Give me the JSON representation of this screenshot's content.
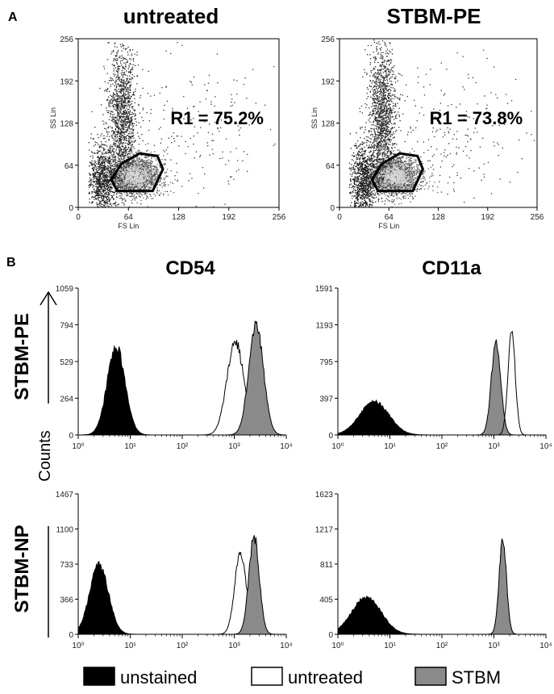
{
  "figure": {
    "panel_a_letter": "A",
    "panel_b_letter": "B",
    "counts_label": "Counts",
    "legend": [
      {
        "label": "unstained",
        "fill": "#000000"
      },
      {
        "label": "untreated",
        "fill": "#ffffff"
      },
      {
        "label": "STBM",
        "fill": "#8a8a8a"
      }
    ]
  },
  "chart_data": [
    {
      "type": "scatter",
      "title": "untreated",
      "xlabel": "FS Lin",
      "ylabel": "SS Lin",
      "xlim": [
        0,
        256
      ],
      "ylim": [
        0,
        256
      ],
      "xticks": [
        "0",
        "64",
        "128",
        "192",
        "256"
      ],
      "yticks": [
        "0",
        "64",
        "128",
        "192",
        "256"
      ],
      "gate": {
        "name": "R1",
        "label": "R1 = 75.2%",
        "percent": 75.2,
        "polygon": [
          [
            50,
            25
          ],
          [
            95,
            25
          ],
          [
            108,
            58
          ],
          [
            101,
            78
          ],
          [
            78,
            82
          ],
          [
            55,
            66
          ],
          [
            42,
            42
          ]
        ]
      }
    },
    {
      "type": "scatter",
      "title": "STBM-PE",
      "xlabel": "FS Lin",
      "ylabel": "SS Lin",
      "xlim": [
        0,
        256
      ],
      "ylim": [
        0,
        256
      ],
      "xticks": [
        "0",
        "64",
        "128",
        "192",
        "256"
      ],
      "yticks": [
        "0",
        "64",
        "128",
        "192",
        "256"
      ],
      "gate": {
        "name": "R1",
        "label": "R1 = 73.8%",
        "percent": 73.8,
        "polygon": [
          [
            50,
            25
          ],
          [
            95,
            25
          ],
          [
            108,
            58
          ],
          [
            101,
            78
          ],
          [
            78,
            82
          ],
          [
            55,
            66
          ],
          [
            42,
            42
          ]
        ]
      }
    },
    {
      "type": "area",
      "title": "CD54",
      "row": "STBM-PE",
      "xscale": "log",
      "xlim": [
        1,
        10000
      ],
      "xticks": [
        "10⁰",
        "10¹",
        "10²",
        "10³",
        "10⁴"
      ],
      "ymax": 1059,
      "yticks": [
        "0",
        "264",
        "529",
        "794",
        "1059"
      ],
      "series": [
        {
          "name": "unstained",
          "peaks": [
            {
              "center": 0.73,
              "width": 0.17,
              "height": 640
            }
          ]
        },
        {
          "name": "untreated",
          "peaks": [
            {
              "center": 3.02,
              "width": 0.16,
              "height": 680
            }
          ]
        },
        {
          "name": "STBM",
          "peaks": [
            {
              "center": 3.42,
              "width": 0.14,
              "height": 790
            }
          ]
        }
      ]
    },
    {
      "type": "area",
      "title": "CD11a",
      "row": "STBM-PE",
      "xscale": "log",
      "xlim": [
        1,
        10000
      ],
      "xticks": [
        "10⁰",
        "10¹",
        "10²",
        "10³",
        "10⁴"
      ],
      "ymax": 1591,
      "yticks": [
        "0",
        "397",
        "795",
        "1193",
        "1591"
      ],
      "series": [
        {
          "name": "unstained",
          "peaks": [
            {
              "center": 0.7,
              "width": 0.28,
              "height": 360
            }
          ]
        },
        {
          "name": "STBM",
          "peaks": [
            {
              "center": 3.04,
              "width": 0.09,
              "height": 1010
            }
          ]
        },
        {
          "name": "untreated",
          "peaks": [
            {
              "center": 3.34,
              "width": 0.07,
              "height": 1120
            }
          ]
        }
      ]
    },
    {
      "type": "area",
      "title": "",
      "row": "STBM-NP",
      "xscale": "log",
      "xlim": [
        1,
        10000
      ],
      "xticks": [
        "10⁰",
        "10¹",
        "10²",
        "10³",
        "10⁴"
      ],
      "ymax": 1467,
      "yticks": [
        "0",
        "366",
        "733",
        "1100",
        "1467"
      ],
      "series": [
        {
          "name": "unstained",
          "peaks": [
            {
              "center": 0.4,
              "width": 0.18,
              "height": 720
            }
          ]
        },
        {
          "name": "untreated",
          "peaks": [
            {
              "center": 3.12,
              "width": 0.11,
              "height": 860
            }
          ]
        },
        {
          "name": "STBM",
          "peaks": [
            {
              "center": 3.38,
              "width": 0.1,
              "height": 1020
            }
          ]
        }
      ]
    },
    {
      "type": "area",
      "title": "",
      "row": "STBM-NP",
      "xscale": "log",
      "xlim": [
        1,
        10000
      ],
      "xticks": [
        "10⁰",
        "10¹",
        "10²",
        "10³",
        "10⁴"
      ],
      "ymax": 1623,
      "yticks": [
        "0",
        "405",
        "811",
        "1217",
        "1623"
      ],
      "series": [
        {
          "name": "unstained",
          "peaks": [
            {
              "center": 0.55,
              "width": 0.28,
              "height": 430
            }
          ]
        },
        {
          "name": "untreated",
          "peaks": [
            {
              "center": 3.17,
              "width": 0.07,
              "height": 1070
            }
          ]
        },
        {
          "name": "STBM",
          "peaks": [
            {
              "center": 3.17,
              "width": 0.07,
              "height": 1100
            }
          ]
        }
      ]
    }
  ]
}
